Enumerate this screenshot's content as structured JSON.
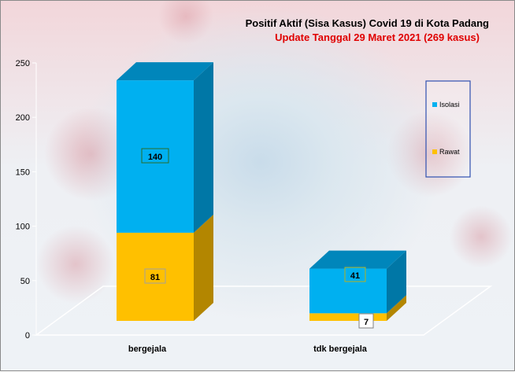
{
  "chart_data": {
    "type": "bar",
    "stacked": true,
    "three_d": true,
    "title": "Positif Aktif  (Sisa Kasus) Covid 19 di Kota Padang",
    "subtitle": "Update Tanggal  29 Maret 2021  (269 kasus)",
    "categories": [
      "bergejala",
      "tdk bergejala"
    ],
    "series": [
      {
        "name": "Rawat",
        "values": [
          81,
          7
        ],
        "color": "#ffc000",
        "side_color": "#b38600"
      },
      {
        "name": "Isolasi",
        "values": [
          140,
          41
        ],
        "color": "#00b0f0",
        "side_color": "#0077a6"
      }
    ],
    "data_labels": [
      {
        "series": "Isolasi",
        "category": "bergejala",
        "text": "140"
      },
      {
        "series": "Rawat",
        "category": "bergejala",
        "text": "81"
      },
      {
        "series": "Isolasi",
        "category": "tdk bergejala",
        "text": "41"
      },
      {
        "series": "Rawat",
        "category": "tdk bergejala",
        "text": "7"
      }
    ],
    "ylim": [
      0,
      250
    ],
    "yticks": [
      0,
      50,
      100,
      150,
      200,
      250
    ],
    "grid": false,
    "legend_position": "right",
    "legend_items": [
      "Isolasi",
      "Rawat"
    ],
    "title_color": "#000000",
    "subtitle_color": "#e00000"
  }
}
